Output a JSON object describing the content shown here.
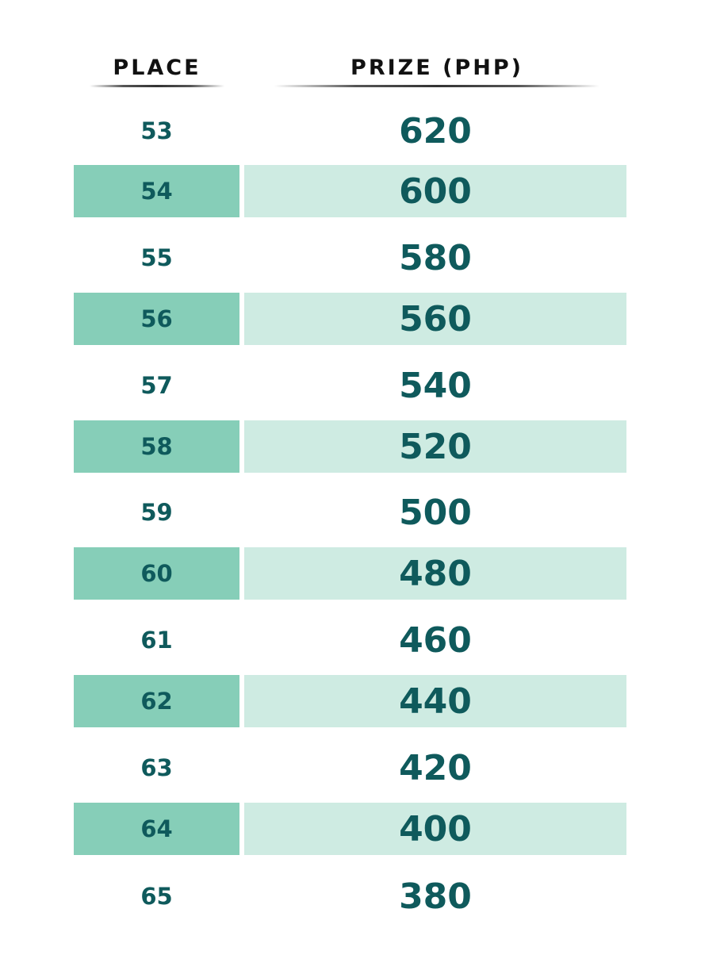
{
  "header": {
    "place": "PLACE",
    "prize": "PRIZE (PHP)"
  },
  "colors": {
    "text": "#0f5a5c",
    "place_shade": "#86ceb8",
    "prize_shade": "#ceebe2",
    "header_text": "#111111"
  },
  "rows": [
    {
      "place": "53",
      "prize": "620"
    },
    {
      "place": "54",
      "prize": "600"
    },
    {
      "place": "55",
      "prize": "580"
    },
    {
      "place": "56",
      "prize": "560"
    },
    {
      "place": "57",
      "prize": "540"
    },
    {
      "place": "58",
      "prize": "520"
    },
    {
      "place": "59",
      "prize": "500"
    },
    {
      "place": "60",
      "prize": "480"
    },
    {
      "place": "61",
      "prize": "460"
    },
    {
      "place": "62",
      "prize": "440"
    },
    {
      "place": "63",
      "prize": "420"
    },
    {
      "place": "64",
      "prize": "400"
    },
    {
      "place": "65",
      "prize": "380"
    }
  ]
}
